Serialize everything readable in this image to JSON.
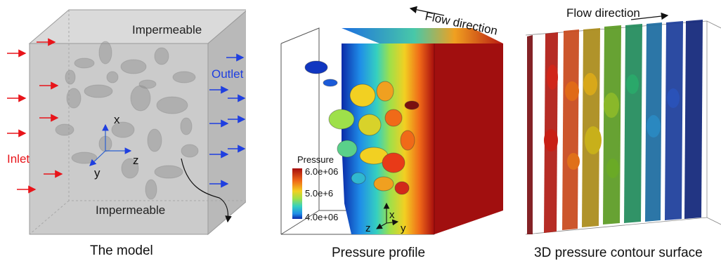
{
  "panels": {
    "model": {
      "caption": "The model",
      "top_label": "Impermeable",
      "bottom_label": "Impermeable",
      "inlet_label": "Inlet",
      "outlet_label": "Outlet",
      "axis_x": "x",
      "axis_y": "y",
      "axis_z": "z",
      "colors": {
        "inlet": "#e8141a",
        "outlet": "#1f3fe0",
        "box": "#c8c8c8"
      }
    },
    "pressure": {
      "caption": "Pressure profile",
      "flow_label": "Flow direction",
      "legend_title": "Pressure",
      "legend_ticks": [
        "6.0e+06",
        "5.0e+6",
        "4.0e+06"
      ],
      "axis_x": "x",
      "axis_y": "y",
      "axis_z": "z"
    },
    "contour": {
      "caption": "3D pressure contour surface",
      "flow_label": "Flow direction"
    }
  }
}
